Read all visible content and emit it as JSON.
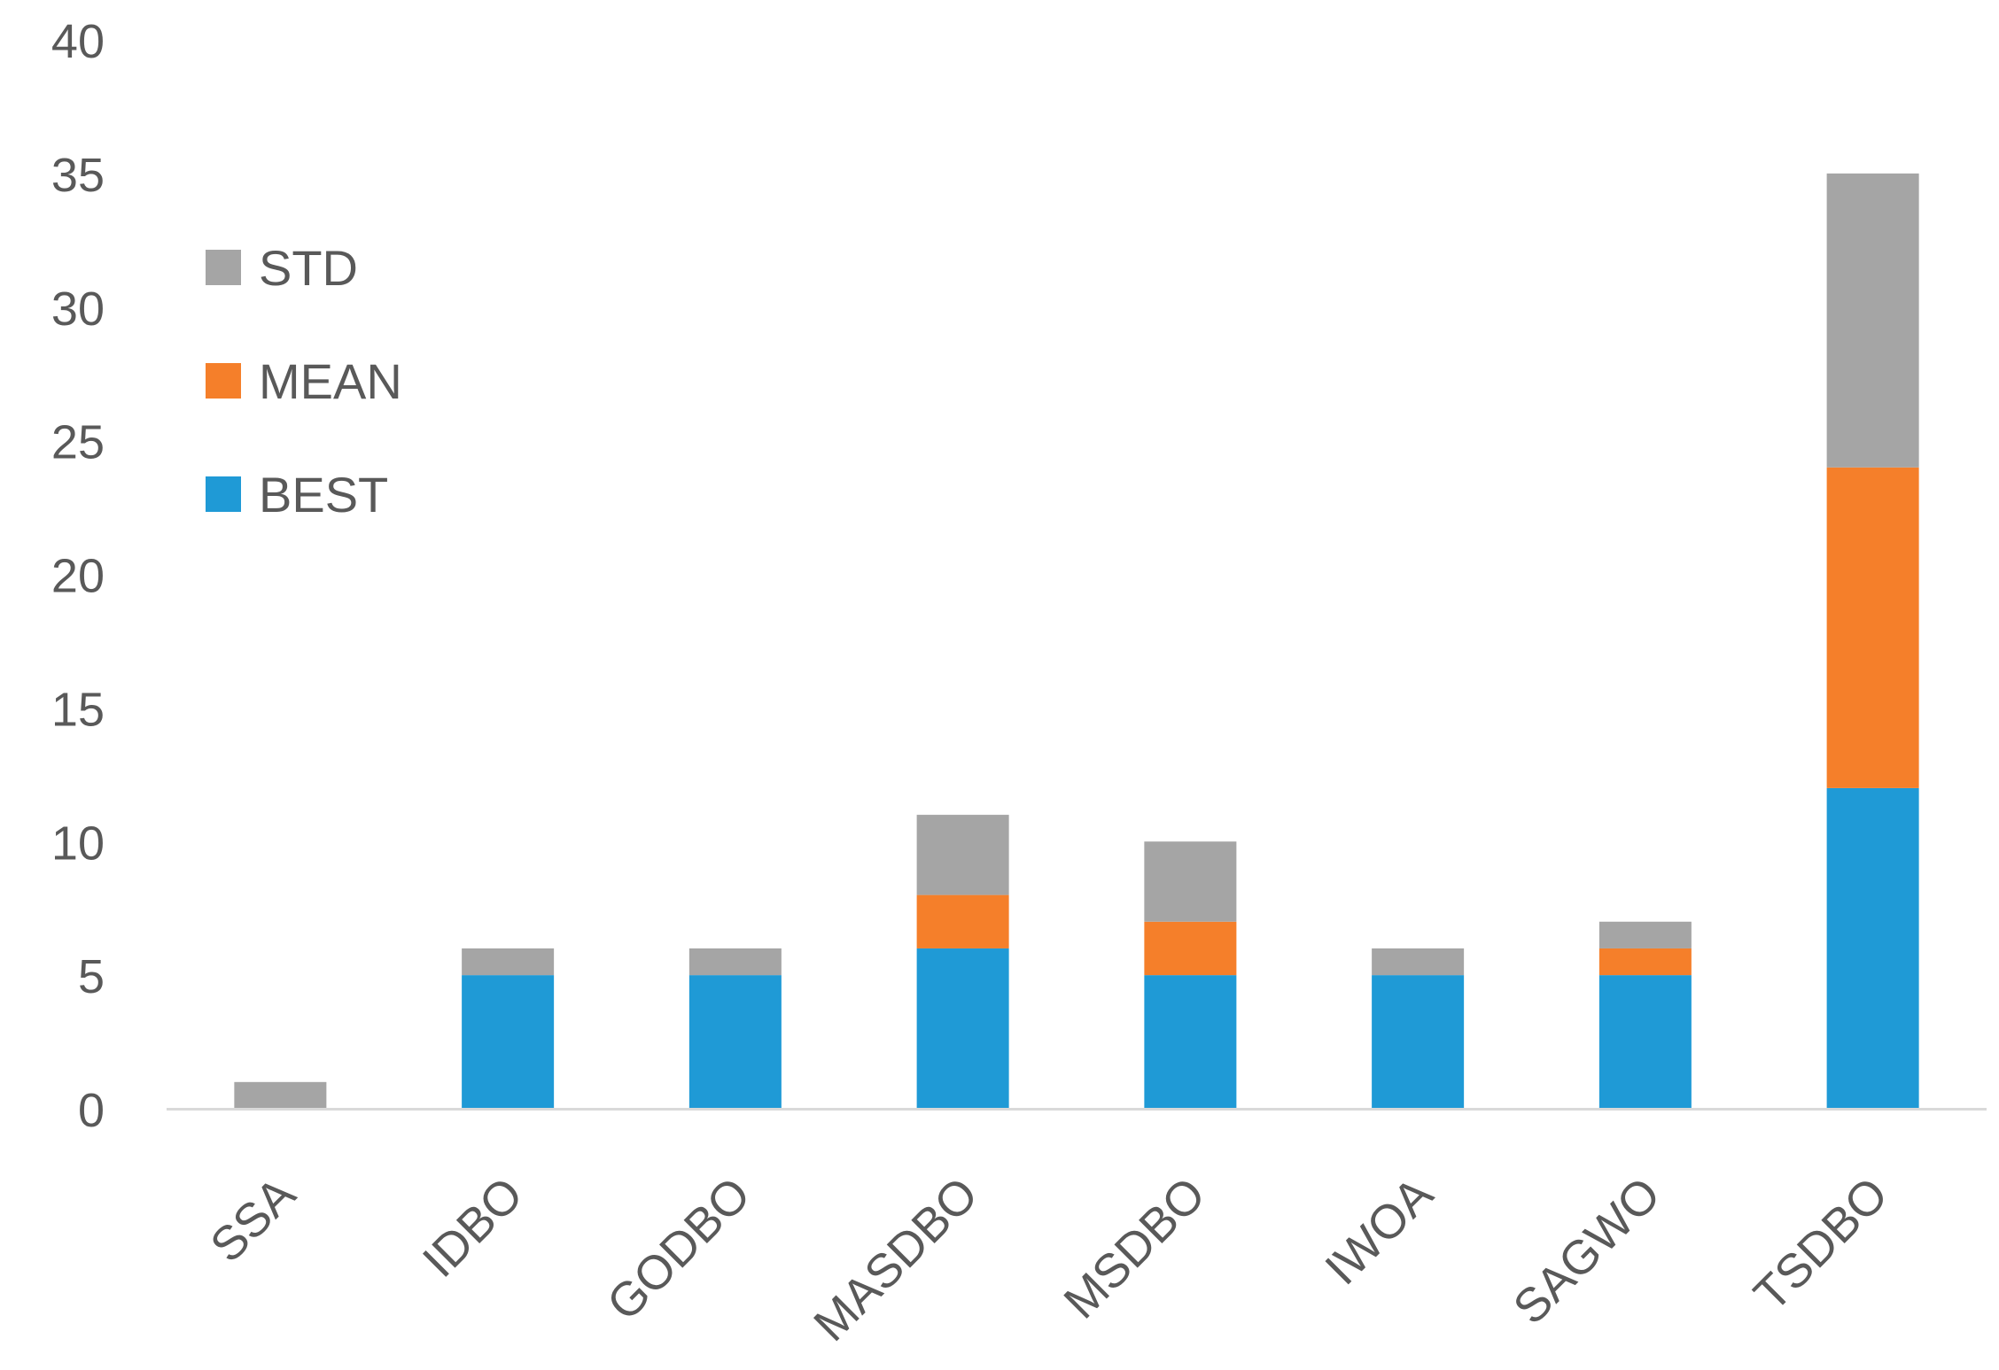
{
  "chart_data": {
    "type": "bar",
    "stacked": true,
    "title": "",
    "xlabel": "",
    "ylabel": "",
    "ylim": [
      0,
      40
    ],
    "yticks": [
      "0",
      "5",
      "10",
      "15",
      "20",
      "25",
      "30",
      "35",
      "40"
    ],
    "categories": [
      "SSA",
      "IDBO",
      "GODBO",
      "MASDBO",
      "MSDBO",
      "IWOA",
      "SAGWO",
      "TSDBO"
    ],
    "series": [
      {
        "name": "BEST",
        "color": "#1f9ad6",
        "values": [
          0,
          5,
          5,
          6,
          5,
          5,
          5,
          12
        ]
      },
      {
        "name": "MEAN",
        "color": "#f57f2a",
        "values": [
          0,
          0,
          0,
          2,
          2,
          0,
          1,
          12
        ]
      },
      {
        "name": "STD",
        "color": "#a5a5a5",
        "values": [
          1,
          1,
          1,
          3,
          3,
          1,
          1,
          11
        ]
      }
    ],
    "legend_order": [
      "STD",
      "MEAN",
      "BEST"
    ],
    "grid": false,
    "legend_position": "upper-left",
    "axis_color": "#d9d9d9"
  }
}
